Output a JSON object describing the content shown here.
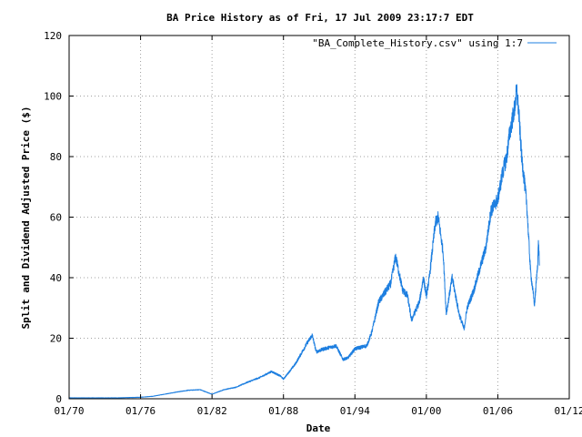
{
  "chart_data": {
    "type": "line",
    "title": "BA Price History as of Fri, 17 Jul 2009 23:17:7 EDT",
    "xlabel": "Date",
    "ylabel": "Split and Dividend Adjusted Price ($)",
    "x_range": [
      "1970-01",
      "2012-01"
    ],
    "ylim": [
      0,
      120
    ],
    "x_ticks": [
      "01/70",
      "01/76",
      "01/82",
      "01/88",
      "01/94",
      "01/00",
      "01/06",
      "01/12"
    ],
    "y_ticks": [
      0,
      20,
      40,
      60,
      80,
      100,
      120
    ],
    "grid": true,
    "legend_position": "top-right",
    "series": [
      {
        "name": "\"BA_Complete_History.csv\" using 1:7",
        "color": "#1e7fe0",
        "points": [
          [
            "1970-01",
            0.3
          ],
          [
            "1971-01",
            0.3
          ],
          [
            "1972-01",
            0.3
          ],
          [
            "1973-01",
            0.3
          ],
          [
            "1974-01",
            0.3
          ],
          [
            "1975-01",
            0.4
          ],
          [
            "1976-01",
            0.5
          ],
          [
            "1977-01",
            0.8
          ],
          [
            "1978-01",
            1.5
          ],
          [
            "1979-01",
            2.2
          ],
          [
            "1980-01",
            2.8
          ],
          [
            "1981-01",
            3.0
          ],
          [
            "1982-01",
            1.5
          ],
          [
            "1983-01",
            3.0
          ],
          [
            "1984-01",
            3.8
          ],
          [
            "1985-01",
            5.5
          ],
          [
            "1986-01",
            7.0
          ],
          [
            "1987-01",
            9.0
          ],
          [
            "1987-10",
            7.5
          ],
          [
            "1988-01",
            6.5
          ],
          [
            "1989-01",
            11.5
          ],
          [
            "1990-01",
            18.5
          ],
          [
            "1990-06",
            21.0
          ],
          [
            "1990-10",
            15.5
          ],
          [
            "1991-06",
            16.5
          ],
          [
            "1992-06",
            17.5
          ],
          [
            "1993-01",
            13.0
          ],
          [
            "1993-06",
            13.5
          ],
          [
            "1994-01",
            16.5
          ],
          [
            "1995-01",
            17.5
          ],
          [
            "1995-06",
            22.0
          ],
          [
            "1996-01",
            32.0
          ],
          [
            "1997-01",
            38.0
          ],
          [
            "1997-06",
            47.0
          ],
          [
            "1998-01",
            36.0
          ],
          [
            "1998-06",
            34.0
          ],
          [
            "1998-10",
            26.0
          ],
          [
            "1999-06",
            32.0
          ],
          [
            "1999-10",
            40.0
          ],
          [
            "2000-01",
            34.0
          ],
          [
            "2000-04",
            40.0
          ],
          [
            "2000-10",
            58.0
          ],
          [
            "2001-01",
            60.0
          ],
          [
            "2001-06",
            48.0
          ],
          [
            "2001-09",
            28.0
          ],
          [
            "2002-03",
            40.0
          ],
          [
            "2002-10",
            28.0
          ],
          [
            "2003-03",
            23.0
          ],
          [
            "2003-06",
            30.0
          ],
          [
            "2004-01",
            36.0
          ],
          [
            "2004-06",
            42.0
          ],
          [
            "2005-01",
            50.0
          ],
          [
            "2005-06",
            62.0
          ],
          [
            "2006-01",
            66.0
          ],
          [
            "2006-06",
            75.0
          ],
          [
            "2006-10",
            80.0
          ],
          [
            "2007-01",
            88.0
          ],
          [
            "2007-06",
            96.0
          ],
          [
            "2007-08",
            102.0
          ],
          [
            "2007-10",
            95.0
          ],
          [
            "2008-01",
            80.0
          ],
          [
            "2008-06",
            65.0
          ],
          [
            "2008-10",
            42.0
          ],
          [
            "2009-02",
            31.0
          ],
          [
            "2009-05",
            44.0
          ],
          [
            "2009-06",
            52.0
          ],
          [
            "2009-07",
            44.0
          ]
        ]
      }
    ]
  }
}
